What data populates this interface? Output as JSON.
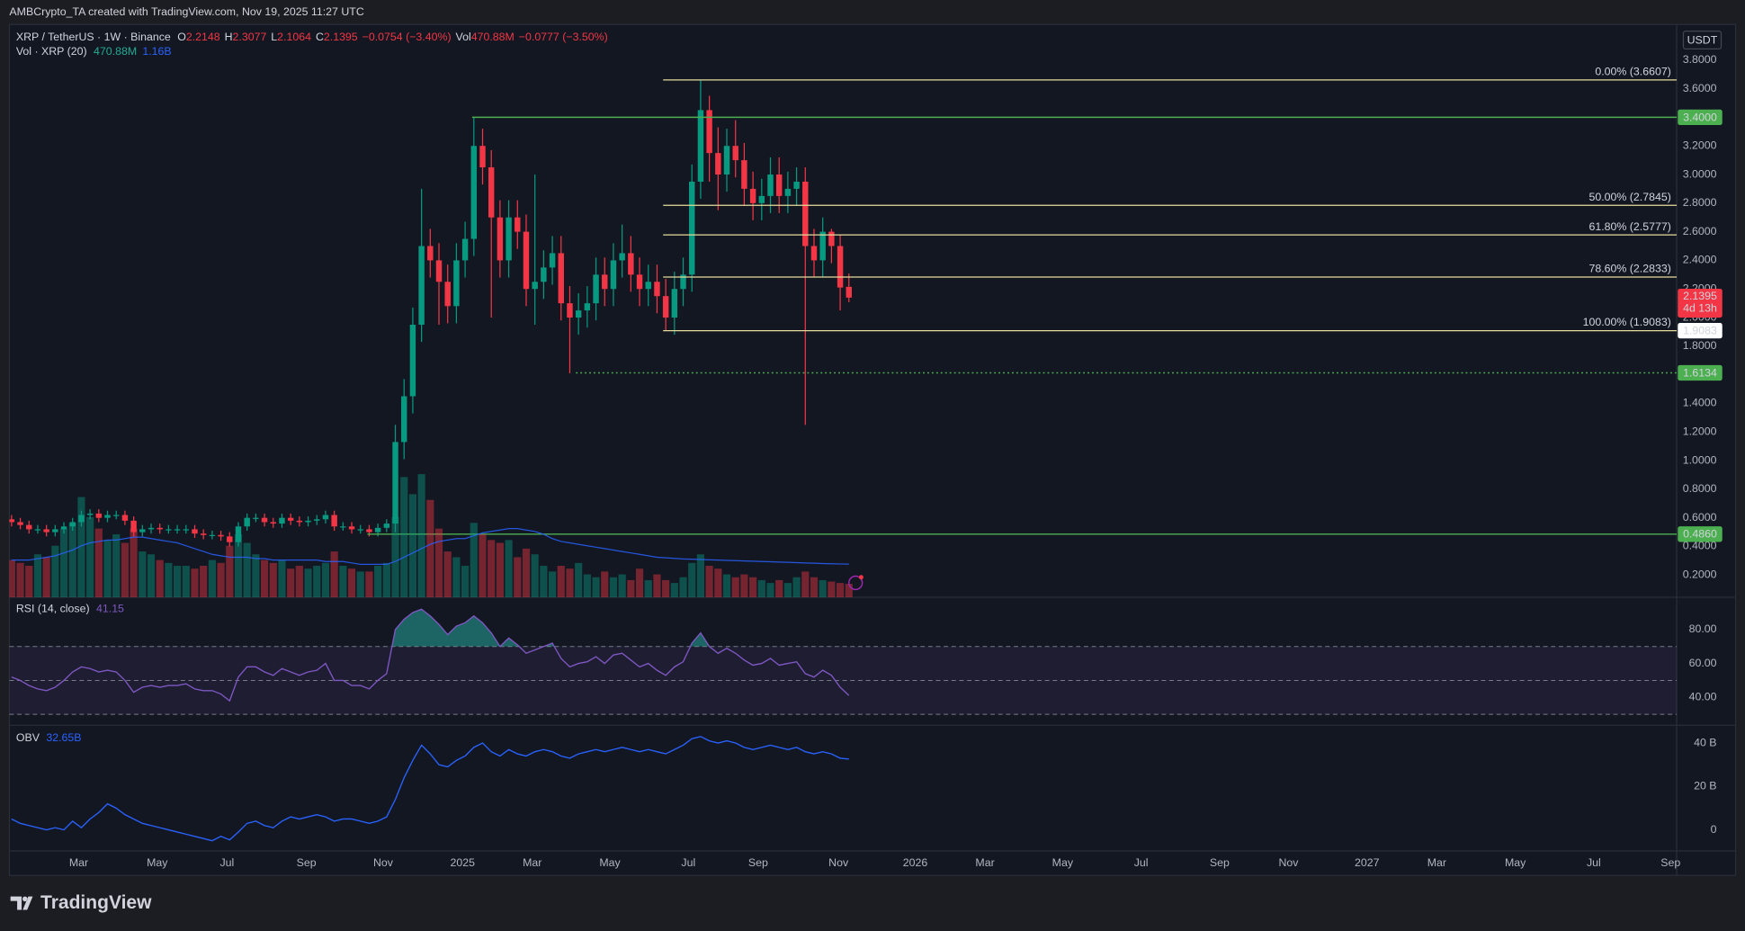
{
  "header": {
    "text": "AMBCrypto_TA created with TradingView.com, Nov 19, 2025 11:27 UTC"
  },
  "footer": {
    "logo": "TradingView"
  },
  "currency_label": "USDT",
  "chart_data": [
    {
      "type": "candlestick",
      "title": "XRP / TetherUS · 1W · Binance",
      "ohlc_names": [
        "O",
        "H",
        "L",
        "C"
      ],
      "change_label": "−0.0754 (−3.40%)",
      "volume_name": "Vol",
      "volume_change_label": "−0.0777 (−3.50%)",
      "countdown": "4d 13h",
      "up_color": "#089981",
      "down_color": "#f23645",
      "x": [
        0,
        1,
        2,
        3,
        4,
        5,
        6,
        7,
        8,
        9,
        10,
        11,
        12,
        13,
        14,
        15,
        16,
        17,
        18,
        19,
        20,
        21,
        22,
        23,
        24,
        25,
        26,
        27,
        28,
        29,
        30,
        31,
        32,
        33,
        34,
        35,
        36,
        37,
        38,
        39,
        40,
        41,
        42,
        43,
        44,
        45,
        46,
        47,
        48,
        49,
        50,
        51,
        52,
        53,
        54,
        55,
        56,
        57,
        58,
        59,
        60,
        61,
        62,
        63,
        64,
        65,
        66,
        67,
        68,
        69,
        70,
        71,
        72,
        73,
        74,
        75,
        76,
        77,
        78,
        79,
        80,
        81,
        82,
        83,
        84,
        85,
        86,
        87,
        88,
        89,
        90,
        91,
        92,
        93,
        94,
        95,
        96
      ],
      "open": [
        0.59,
        0.57,
        0.55,
        0.52,
        0.52,
        0.5,
        0.52,
        0.54,
        0.57,
        0.62,
        0.63,
        0.6,
        0.62,
        0.62,
        0.58,
        0.5,
        0.52,
        0.53,
        0.52,
        0.52,
        0.52,
        0.52,
        0.49,
        0.48,
        0.48,
        0.47,
        0.43,
        0.54,
        0.6,
        0.6,
        0.57,
        0.56,
        0.6,
        0.58,
        0.57,
        0.58,
        0.59,
        0.62,
        0.54,
        0.54,
        0.52,
        0.52,
        0.5,
        0.53,
        0.56,
        1.13,
        1.45,
        1.95,
        2.5,
        2.4,
        2.25,
        2.08,
        2.4,
        2.55,
        3.2,
        3.05,
        2.7,
        2.4,
        2.7,
        2.6,
        2.2,
        2.25,
        2.35,
        2.45,
        2.1,
        2.0,
        2.05,
        2.1,
        2.3,
        2.2,
        2.4,
        2.45,
        2.3,
        2.2,
        2.25,
        2.15,
        2.0,
        2.2,
        2.3,
        2.95,
        3.45,
        3.15,
        3.0,
        3.2,
        3.1,
        2.9,
        2.8,
        2.85,
        3.0,
        2.85,
        2.9,
        2.95,
        2.5,
        2.4,
        2.6,
        2.5,
        2.2148
      ],
      "high": [
        0.62,
        0.6,
        0.58,
        0.55,
        0.55,
        0.55,
        0.57,
        0.6,
        0.65,
        0.66,
        0.66,
        0.65,
        0.65,
        0.65,
        0.61,
        0.55,
        0.56,
        0.56,
        0.55,
        0.55,
        0.55,
        0.55,
        0.52,
        0.51,
        0.51,
        0.5,
        0.57,
        0.63,
        0.63,
        0.63,
        0.6,
        0.63,
        0.63,
        0.61,
        0.61,
        0.62,
        0.65,
        0.65,
        0.57,
        0.57,
        0.55,
        0.55,
        0.56,
        0.59,
        1.25,
        1.57,
        2.07,
        2.9,
        2.62,
        2.52,
        2.37,
        2.52,
        2.67,
        3.4,
        3.32,
        3.17,
        2.82,
        2.82,
        2.82,
        2.72,
        3.0,
        2.47,
        2.57,
        2.57,
        2.22,
        2.17,
        2.22,
        2.42,
        2.42,
        2.52,
        2.65,
        2.57,
        2.42,
        2.37,
        2.37,
        2.27,
        2.32,
        2.42,
        3.07,
        3.66,
        3.55,
        3.33,
        3.32,
        3.38,
        3.22,
        3.02,
        2.97,
        3.12,
        3.12,
        3.02,
        3.05,
        3.05,
        2.62,
        2.7,
        2.62,
        2.58,
        2.3077
      ],
      "low": [
        0.54,
        0.52,
        0.49,
        0.49,
        0.47,
        0.47,
        0.49,
        0.51,
        0.54,
        0.59,
        0.57,
        0.57,
        0.59,
        0.55,
        0.47,
        0.47,
        0.49,
        0.49,
        0.49,
        0.49,
        0.49,
        0.46,
        0.45,
        0.45,
        0.44,
        0.4,
        0.4,
        0.51,
        0.57,
        0.54,
        0.53,
        0.53,
        0.55,
        0.54,
        0.54,
        0.55,
        0.56,
        0.51,
        0.51,
        0.49,
        0.49,
        0.47,
        0.47,
        0.5,
        0.5,
        1.01,
        1.33,
        1.83,
        2.28,
        1.95,
        1.96,
        1.96,
        2.28,
        2.43,
        2.93,
        2.0,
        2.28,
        2.28,
        2.48,
        2.08,
        1.95,
        2.13,
        2.23,
        1.98,
        1.61,
        1.88,
        1.93,
        1.98,
        2.08,
        2.08,
        2.28,
        2.18,
        2.08,
        2.08,
        2.03,
        1.91,
        1.88,
        2.08,
        2.18,
        2.83,
        2.95,
        2.75,
        2.88,
        2.98,
        2.78,
        2.68,
        2.68,
        2.73,
        2.73,
        2.73,
        2.78,
        1.25,
        2.28,
        2.28,
        2.38,
        2.05,
        2.1064
      ],
      "close": [
        0.57,
        0.55,
        0.52,
        0.52,
        0.5,
        0.52,
        0.54,
        0.57,
        0.62,
        0.63,
        0.6,
        0.62,
        0.62,
        0.58,
        0.5,
        0.52,
        0.53,
        0.52,
        0.52,
        0.52,
        0.52,
        0.49,
        0.48,
        0.48,
        0.47,
        0.43,
        0.54,
        0.6,
        0.6,
        0.57,
        0.56,
        0.6,
        0.58,
        0.57,
        0.58,
        0.59,
        0.62,
        0.54,
        0.54,
        0.52,
        0.52,
        0.5,
        0.53,
        0.56,
        1.13,
        1.45,
        1.95,
        2.5,
        2.4,
        2.25,
        2.08,
        2.4,
        2.55,
        3.2,
        3.05,
        2.7,
        2.4,
        2.7,
        2.6,
        2.2,
        2.25,
        2.35,
        2.45,
        2.1,
        2.0,
        2.05,
        2.1,
        2.3,
        2.2,
        2.4,
        2.45,
        2.3,
        2.2,
        2.25,
        2.15,
        2.0,
        2.2,
        2.3,
        2.95,
        3.45,
        3.15,
        3.0,
        3.2,
        3.1,
        2.9,
        2.8,
        2.85,
        3.0,
        2.85,
        2.9,
        2.95,
        2.5,
        2.4,
        2.6,
        2.5,
        2.21,
        2.1395
      ],
      "xlim": [
        -0.25,
        190.9
      ],
      "xticks": [
        {
          "value": 7.7,
          "label": "Mar"
        },
        {
          "value": 16.7,
          "label": "May"
        },
        {
          "value": 24.7,
          "label": "Jul"
        },
        {
          "value": 33.8,
          "label": "Sep"
        },
        {
          "value": 42.6,
          "label": "Nov"
        },
        {
          "value": 51.7,
          "label": "2025"
        },
        {
          "value": 59.7,
          "label": "Mar"
        },
        {
          "value": 68.6,
          "label": "May"
        },
        {
          "value": 77.6,
          "label": "Jul"
        },
        {
          "value": 85.6,
          "label": "Sep"
        },
        {
          "value": 94.8,
          "label": "Nov"
        },
        {
          "value": 103.6,
          "label": "2026"
        },
        {
          "value": 111.6,
          "label": "Mar"
        },
        {
          "value": 120.5,
          "label": "May"
        },
        {
          "value": 129.5,
          "label": "Jul"
        },
        {
          "value": 138.5,
          "label": "Sep"
        },
        {
          "value": 146.4,
          "label": "Nov"
        },
        {
          "value": 155.4,
          "label": "2027"
        },
        {
          "value": 163.4,
          "label": "Mar"
        },
        {
          "value": 172.4,
          "label": "May"
        },
        {
          "value": 181.4,
          "label": "Jul"
        },
        {
          "value": 190.2,
          "label": "Sep"
        }
      ],
      "ylim": [
        0.0445,
        4.0488
      ],
      "yticks": [
        {
          "value": 0.2,
          "label": "0.2000"
        },
        {
          "value": 0.4,
          "label": "0.4000"
        },
        {
          "value": 0.6,
          "label": "0.6000"
        },
        {
          "value": 0.8,
          "label": "0.8000"
        },
        {
          "value": 1.0,
          "label": "1.0000"
        },
        {
          "value": 1.2,
          "label": "1.2000"
        },
        {
          "value": 1.4,
          "label": "1.4000"
        },
        {
          "value": 1.6,
          "label": "1.6000"
        },
        {
          "value": 1.8,
          "label": "1.8000"
        },
        {
          "value": 2.0,
          "label": "2.0000"
        },
        {
          "value": 2.2,
          "label": "2.2000"
        },
        {
          "value": 2.4,
          "label": "2.4000"
        },
        {
          "value": 2.6,
          "label": "2.6000"
        },
        {
          "value": 2.8,
          "label": "2.8000"
        },
        {
          "value": 3.0,
          "label": "3.0000"
        },
        {
          "value": 3.2,
          "label": "3.2000"
        },
        {
          "value": 3.4,
          "label": "3.4000"
        },
        {
          "value": 3.6,
          "label": "3.6000"
        },
        {
          "value": 3.8,
          "label": "3.8000"
        }
      ],
      "levels": [
        {
          "value": 3.4,
          "label": "3.4000",
          "x_start": 52.8,
          "color": "#4caf50",
          "dotted": false
        },
        {
          "value": 1.6134,
          "label": "1.6134",
          "x_start": 64.7,
          "color": "#4caf50",
          "dotted": true
        },
        {
          "value": 0.486,
          "label": "0.4860",
          "x_start": 40.8,
          "color": "#4caf50",
          "dotted": false
        }
      ],
      "fib": {
        "x_start": 74.7,
        "color": "#e6dc9a",
        "levels": [
          {
            "value": 3.6607,
            "label": "0.00% (3.6607)"
          },
          {
            "value": 2.7845,
            "label": "50.00% (2.7845)"
          },
          {
            "value": 2.5777,
            "label": "61.80% (2.5777)"
          },
          {
            "value": 2.2833,
            "label": "78.60% (2.2833)"
          },
          {
            "value": 1.9083,
            "label": "100.00% (1.9083)",
            "axis_tag": "1.9083"
          }
        ]
      }
    },
    {
      "type": "bar",
      "title": "Vol · XRP (20)",
      "ylim": [
        0,
        20000
      ],
      "series": [
        {
          "color": "#22ab94",
          "last_label": "470.88M",
          "values": [
            1300,
            1200,
            1100,
            1500,
            1400,
            1800,
            2400,
            2600,
            3500,
            2800,
            2400,
            2000,
            2200,
            1900,
            2400,
            1600,
            1500,
            1300,
            1200,
            1100,
            1100,
            1000,
            1100,
            1300,
            1200,
            1800,
            2200,
            1900,
            1500,
            1300,
            1200,
            1300,
            1000,
            1100,
            1000,
            1100,
            1200,
            1600,
            1100,
            1000,
            900,
            900,
            1100,
            1200,
            2800,
            4200,
            3600,
            4300,
            3400,
            2400,
            1600,
            1400,
            1100,
            2600,
            2200,
            2000,
            1900,
            2000,
            1400,
            1700,
            1500,
            1100,
            900,
            1100,
            1000,
            1200,
            800,
            700,
            900,
            700,
            800,
            600,
            1000,
            600,
            800,
            600,
            500,
            700,
            1200,
            1500,
            1100,
            1000,
            800,
            700,
            800,
            700,
            600,
            500,
            600,
            500,
            700,
            900,
            700,
            600,
            550,
            500,
            470.88
          ]
        },
        {
          "color": "#2962ff",
          "last_label": "1.16B",
          "values": [
            1300,
            1300,
            1300,
            1350,
            1400,
            1450,
            1550,
            1650,
            1800,
            1900,
            1950,
            2000,
            2000,
            2050,
            2100,
            2100,
            2050,
            2000,
            1950,
            1900,
            1800,
            1700,
            1600,
            1500,
            1450,
            1400,
            1400,
            1400,
            1350,
            1350,
            1300,
            1300,
            1300,
            1300,
            1300,
            1300,
            1250,
            1250,
            1250,
            1200,
            1150,
            1150,
            1150,
            1150,
            1250,
            1400,
            1550,
            1700,
            1850,
            1950,
            2000,
            2050,
            2050,
            2150,
            2250,
            2300,
            2350,
            2400,
            2400,
            2350,
            2300,
            2200,
            2050,
            1950,
            1900,
            1850,
            1800,
            1750,
            1700,
            1650,
            1600,
            1550,
            1500,
            1450,
            1400,
            1380,
            1360,
            1340,
            1330,
            1320,
            1310,
            1300,
            1290,
            1280,
            1270,
            1260,
            1250,
            1240,
            1230,
            1220,
            1210,
            1200,
            1190,
            1180,
            1170,
            1165,
            1160
          ]
        }
      ]
    },
    {
      "type": "line",
      "title": "RSI (14, close)",
      "color": "#7e57c2",
      "overbought_color": "#26a69a",
      "ylim": [
        23.6,
        99.0
      ],
      "yticks": [
        {
          "value": 80,
          "label": "80.00"
        },
        {
          "value": 60,
          "label": "60.00"
        },
        {
          "value": 40,
          "label": "40.00"
        }
      ],
      "band_levels": [
        70,
        50,
        30
      ],
      "values": [
        52,
        50,
        47,
        45,
        44,
        46,
        50,
        55,
        58,
        57,
        55,
        56,
        55,
        50,
        43,
        46,
        47,
        46,
        47,
        47,
        48,
        45,
        44,
        44,
        42,
        38,
        52,
        58,
        58,
        55,
        53,
        57,
        55,
        53,
        55,
        56,
        60,
        50,
        50,
        47,
        47,
        45,
        50,
        54,
        80,
        86,
        90,
        92,
        88,
        83,
        77,
        82,
        84,
        88,
        84,
        78,
        70,
        75,
        71,
        66,
        68,
        70,
        72,
        63,
        58,
        60,
        61,
        64,
        60,
        65,
        66,
        62,
        58,
        60,
        56,
        53,
        58,
        61,
        72,
        78,
        70,
        66,
        69,
        66,
        62,
        59,
        60,
        63,
        59,
        60,
        61,
        54,
        52,
        56,
        53,
        46,
        41.15
      ]
    },
    {
      "type": "line",
      "title": "OBV",
      "color": "#2962ff",
      "last_label": "32.65B",
      "ylim": [
        -9.7,
        48.2
      ],
      "yticks": [
        {
          "value": 40,
          "label": "40 B"
        },
        {
          "value": 20,
          "label": "20 B"
        },
        0
      ],
      "values": [
        5,
        3,
        2,
        1,
        0,
        1,
        0,
        4,
        1,
        5,
        8,
        12,
        10,
        7,
        5,
        3,
        2,
        1,
        0,
        -1,
        -2,
        -3,
        -4,
        -5,
        -3,
        -4.6,
        -1,
        3,
        4,
        2,
        1,
        4,
        6,
        5,
        6,
        7,
        6,
        4,
        5,
        5,
        4,
        3,
        4,
        6,
        14,
        24,
        32,
        39,
        35,
        30,
        29,
        32,
        34,
        38,
        40,
        36,
        34,
        37,
        35,
        34,
        36,
        37,
        36,
        34,
        33,
        35,
        36,
        37,
        36,
        37,
        38,
        37,
        36,
        37,
        36,
        35,
        37,
        39,
        42,
        43,
        41,
        40,
        41,
        40,
        38,
        37,
        38,
        39,
        38,
        37,
        38,
        36,
        35,
        36,
        35,
        33,
        32.65
      ]
    }
  ]
}
